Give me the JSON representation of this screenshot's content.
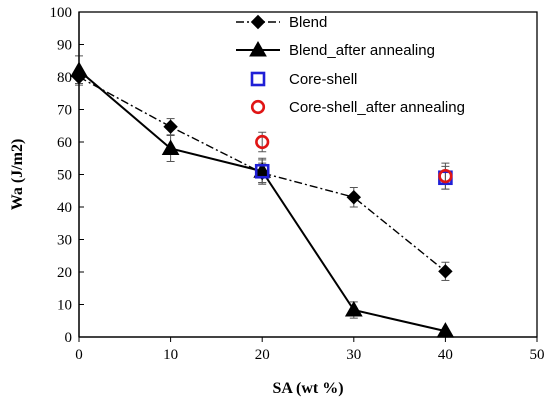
{
  "chart_data": {
    "type": "line",
    "xlabel": "SA (wt %)",
    "ylabel": "Wa (J/m2)",
    "xlim": [
      0,
      50
    ],
    "ylim": [
      0,
      100
    ],
    "xticks": [
      0,
      10,
      20,
      30,
      40,
      50
    ],
    "yticks": [
      0,
      10,
      20,
      30,
      40,
      50,
      60,
      70,
      80,
      90,
      100
    ],
    "grid": false,
    "legend_position": "top-right",
    "series": [
      {
        "name": "Blend",
        "style": "dash-dot line with diamond markers",
        "color": "#000000",
        "x": [
          0,
          10,
          20,
          30,
          40
        ],
        "y": [
          80,
          64.7,
          50.5,
          43,
          20.2
        ],
        "err": [
          2,
          2.5,
          3,
          3,
          2.8
        ]
      },
      {
        "name": "Blend_after annealing",
        "style": "solid line with triangle markers",
        "color": "#000000",
        "x": [
          0,
          10,
          20,
          30,
          40
        ],
        "y": [
          82,
          58,
          51,
          8.3,
          1.8
        ],
        "err": [
          4.5,
          4,
          4,
          2.5,
          0
        ]
      },
      {
        "name": "Core-shell",
        "style": "open square markers",
        "color": "#1f1fd6",
        "x": [
          20,
          40
        ],
        "y": [
          51,
          49
        ],
        "err": [
          3.5,
          3.5
        ]
      },
      {
        "name": "Core-shell_after annealing",
        "style": "open circle markers",
        "color": "#e01515",
        "x": [
          20,
          40
        ],
        "y": [
          60,
          49.5
        ],
        "err": [
          3,
          4
        ]
      }
    ]
  }
}
